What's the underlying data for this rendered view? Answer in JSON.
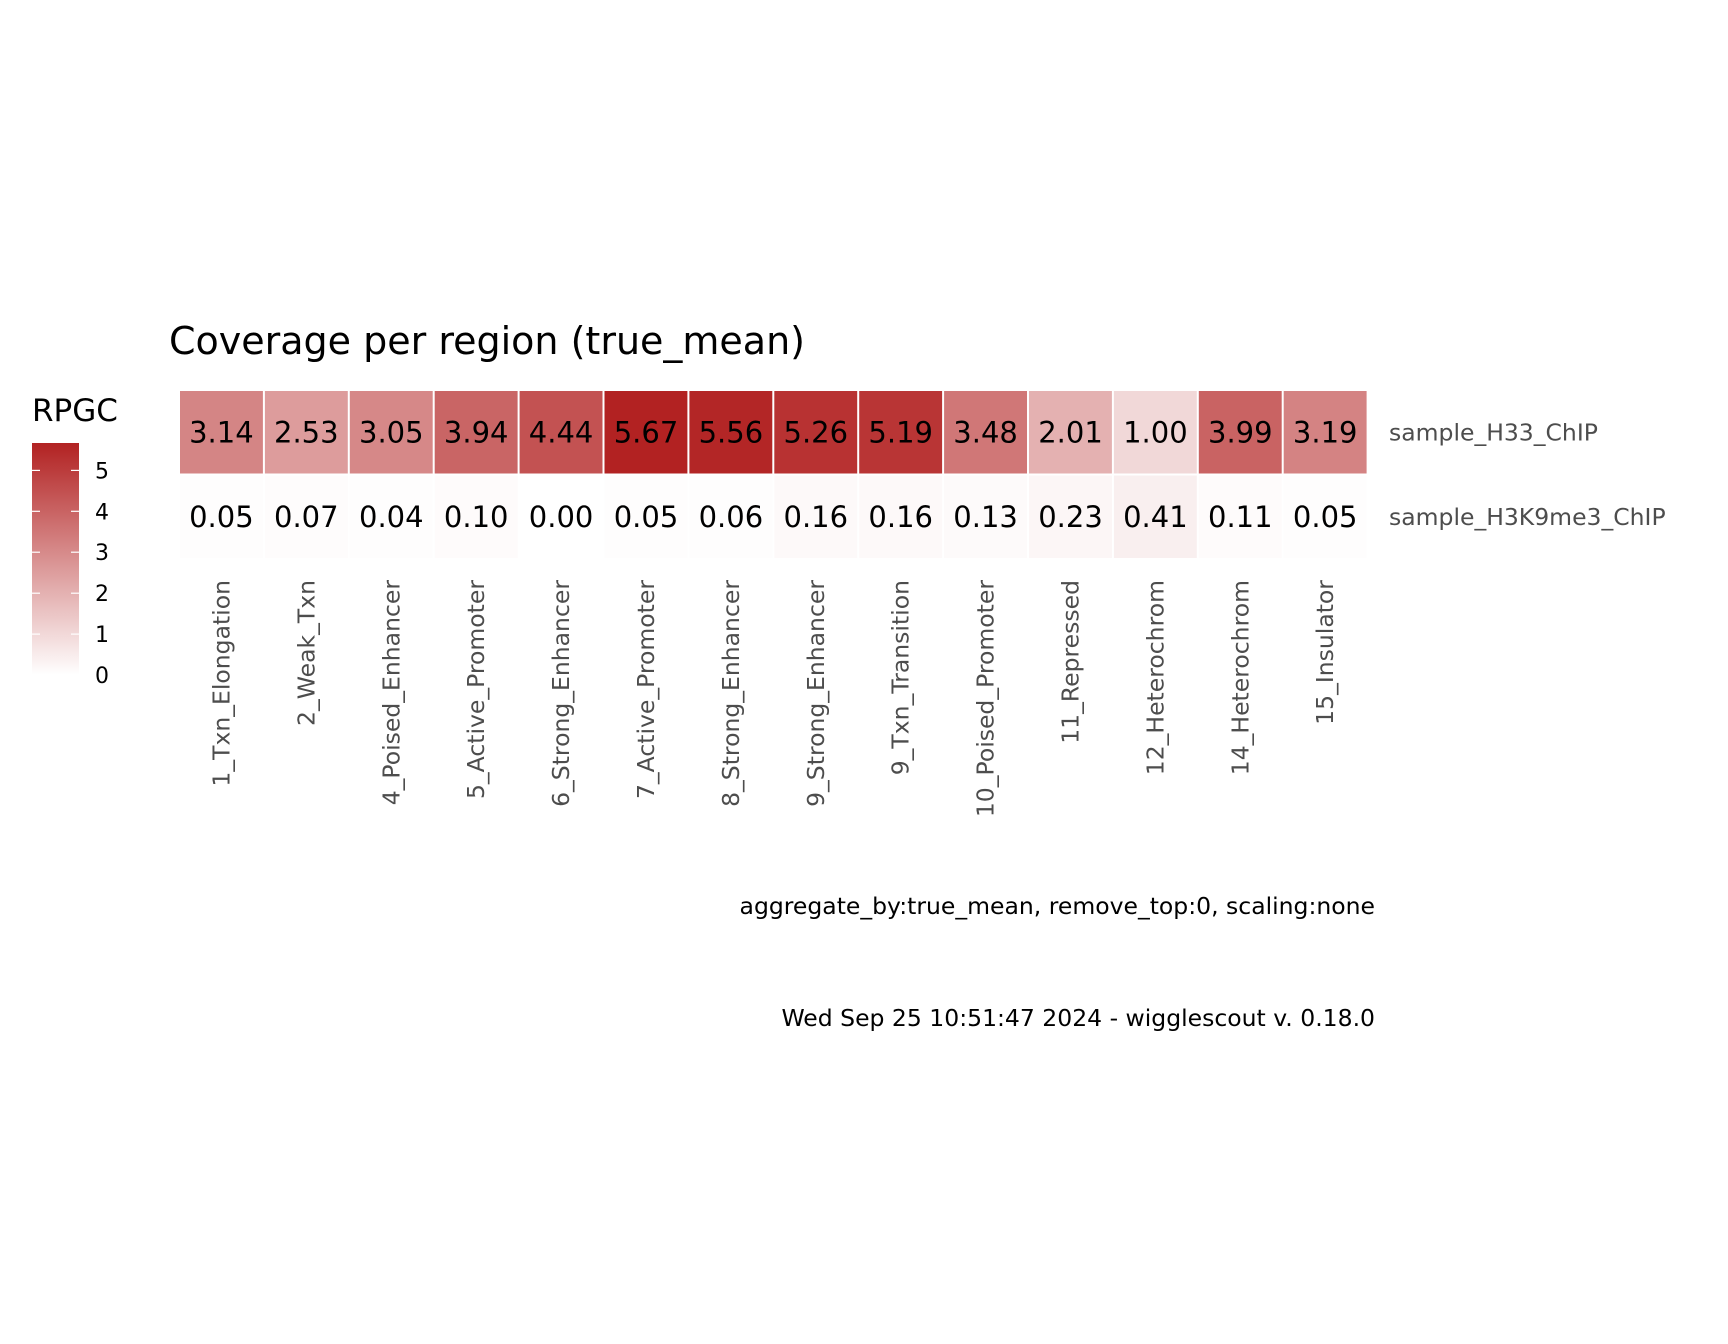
{
  "chart_data": {
    "type": "heatmap",
    "title": "Coverage per region (true_mean)",
    "legend": {
      "title": "RPGC",
      "ticks": [
        "0",
        "1",
        "2",
        "3",
        "4",
        "5"
      ],
      "range": [
        0,
        5.67
      ],
      "low_color": "#ffffff",
      "high_color": "#b22222",
      "placement": "left"
    },
    "columns": [
      "1_Txn_Elongation",
      "2_Weak_Txn",
      "4_Poised_Enhancer",
      "5_Active_Promoter",
      "6_Strong_Enhancer",
      "7_Active_Promoter",
      "8_Strong_Enhancer",
      "9_Strong_Enhancer",
      "9_Txn_Transition",
      "10_Poised_Promoter",
      "11_Repressed",
      "12_Heterochrom",
      "14_Heterochrom",
      "15_Insulator"
    ],
    "rows": [
      {
        "name": "sample_H33_ChIP",
        "values": [
          3.14,
          2.53,
          3.05,
          3.94,
          4.44,
          5.67,
          5.56,
          5.26,
          5.19,
          3.48,
          2.01,
          1.0,
          3.99,
          3.19
        ],
        "labels": [
          "3.14",
          "2.53",
          "3.05",
          "3.94",
          "4.44",
          "5.67",
          "5.56",
          "5.26",
          "5.19",
          "3.48",
          "2.01",
          "1.00",
          "3.99",
          "3.19"
        ]
      },
      {
        "name": "sample_H3K9me3_ChIP",
        "values": [
          0.05,
          0.07,
          0.04,
          0.1,
          0.0,
          0.05,
          0.06,
          0.16,
          0.16,
          0.13,
          0.23,
          0.41,
          0.11,
          0.05
        ],
        "labels": [
          "0.05",
          "0.07",
          "0.04",
          "0.10",
          "0.00",
          "0.05",
          "0.06",
          "0.16",
          "0.16",
          "0.13",
          "0.23",
          "0.41",
          "0.11",
          "0.05"
        ]
      }
    ],
    "caption_1": "aggregate_by:true_mean, remove_top:0, scaling:none",
    "caption_2": "Wed Sep 25 10:51:47 2024 - wigglescout v. 0.18.0"
  }
}
